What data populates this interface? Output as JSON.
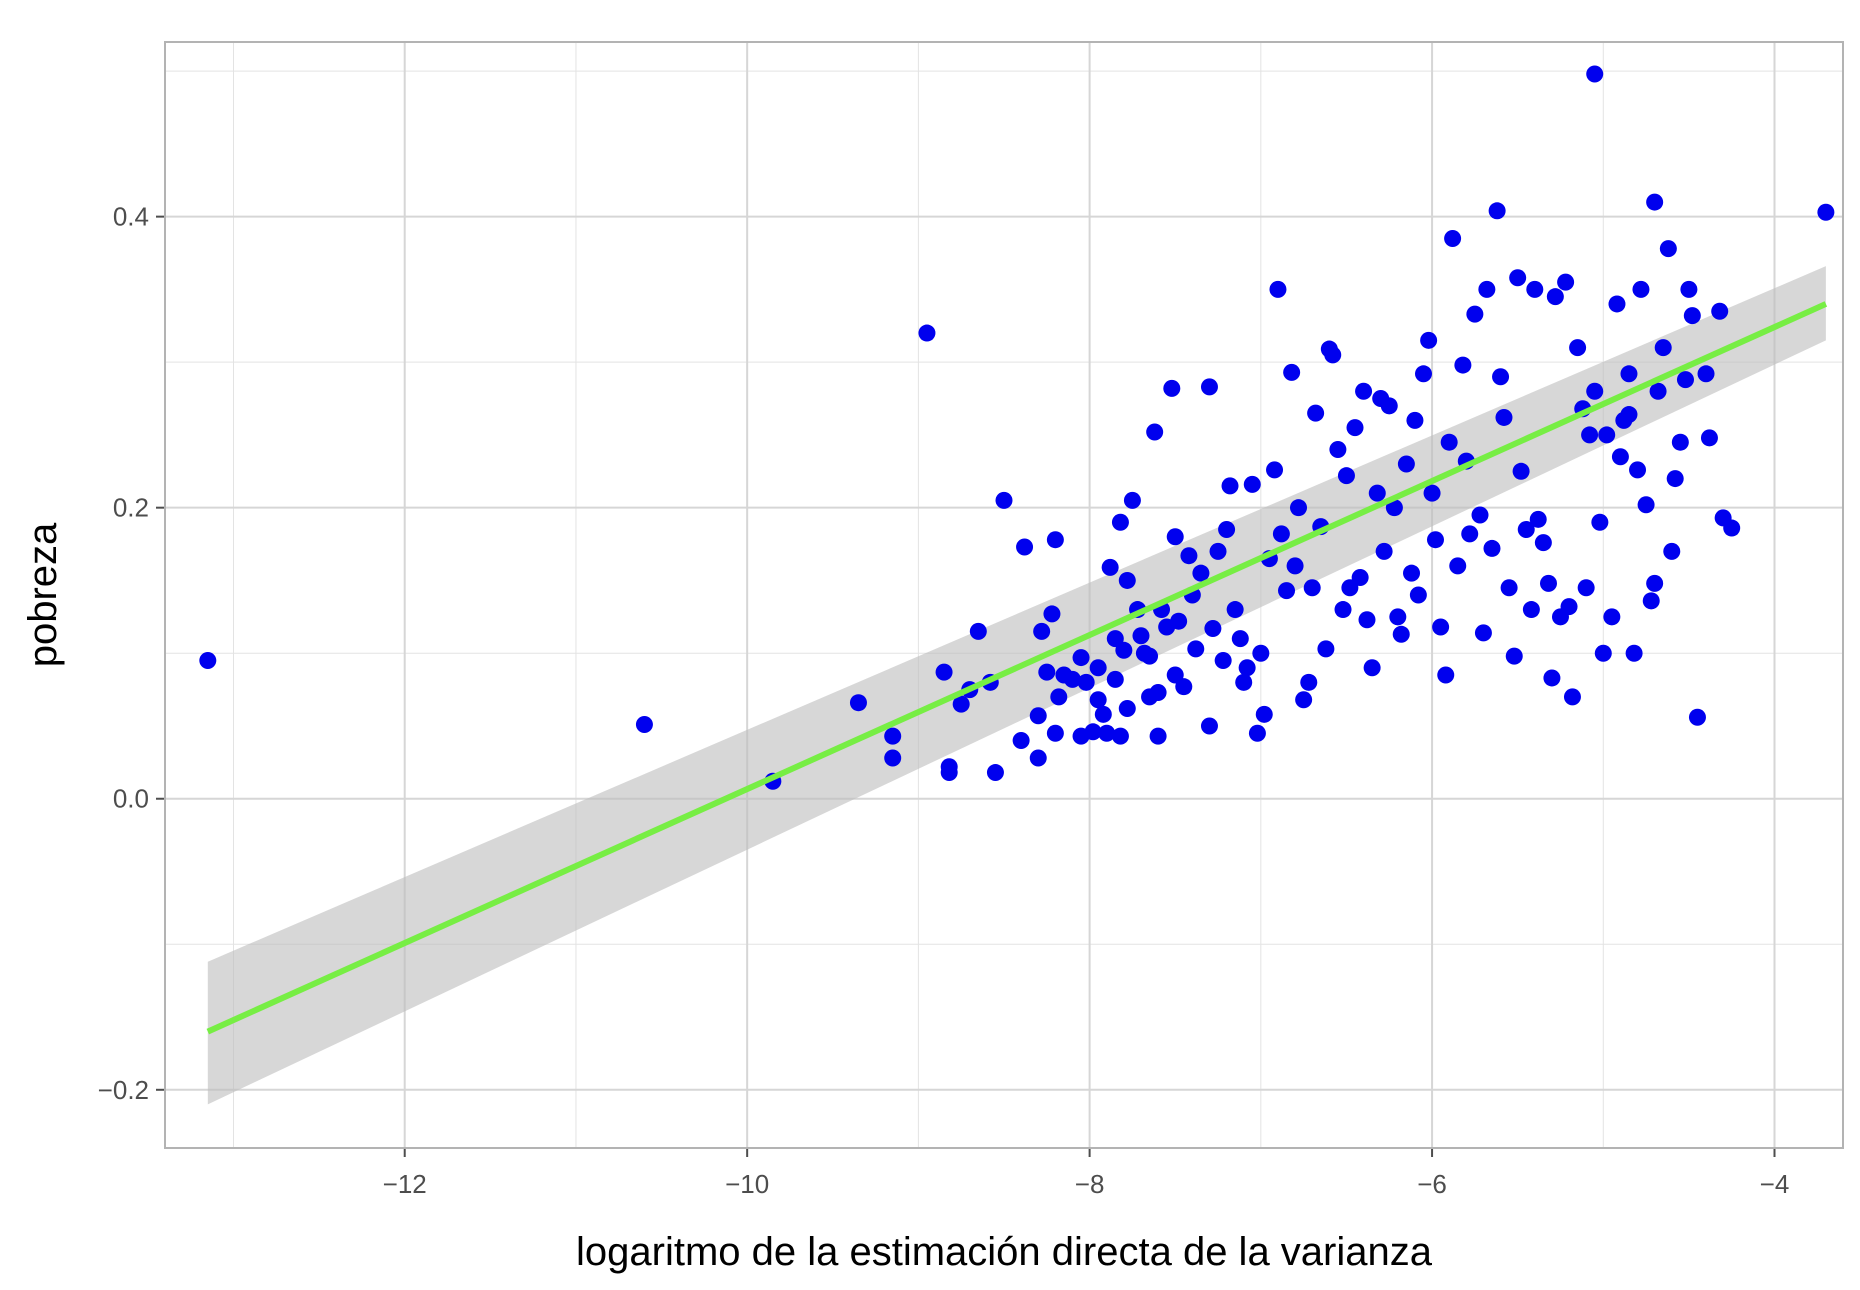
{
  "chart_data": {
    "type": "scatter",
    "xlabel": "logaritmo de la estimación directa de la varianza",
    "ylabel": "pobreza",
    "xlim": [
      -13.4,
      -3.6
    ],
    "ylim": [
      -0.24,
      0.52
    ],
    "x_ticks": [
      -12,
      -10,
      -8,
      -6,
      -4
    ],
    "x_tick_labels": [
      "−12",
      "−10",
      "−8",
      "−6",
      "−4"
    ],
    "y_ticks": [
      -0.2,
      0.0,
      0.2,
      0.4
    ],
    "y_tick_labels": [
      "−0.2",
      "0.0",
      "0.2",
      "0.4"
    ],
    "grid": true,
    "colors": {
      "points": "#0000ee",
      "fit_line": "#77ee44",
      "confidence_band": "#bdbdbd",
      "grid": "#e3e3e3",
      "panel_border": "#b3b3b3"
    },
    "fit": {
      "method": "lm",
      "x": [
        -13.15,
        -3.7
      ],
      "y": [
        -0.16,
        0.34
      ],
      "ci_lower": [
        -0.21,
        0.315
      ],
      "ci_upper": [
        -0.112,
        0.366
      ]
    },
    "points": [
      [
        -13.15,
        0.095
      ],
      [
        -10.6,
        0.051
      ],
      [
        -9.85,
        0.012
      ],
      [
        -9.35,
        0.066
      ],
      [
        -9.15,
        0.043
      ],
      [
        -9.15,
        0.028
      ],
      [
        -8.95,
        0.32
      ],
      [
        -8.85,
        0.087
      ],
      [
        -8.82,
        0.022
      ],
      [
        -8.82,
        0.018
      ],
      [
        -8.75,
        0.065
      ],
      [
        -8.7,
        0.075
      ],
      [
        -8.65,
        0.115
      ],
      [
        -8.58,
        0.08
      ],
      [
        -8.55,
        0.018
      ],
      [
        -8.5,
        0.205
      ],
      [
        -8.4,
        0.04
      ],
      [
        -8.38,
        0.173
      ],
      [
        -8.3,
        0.057
      ],
      [
        -8.3,
        0.028
      ],
      [
        -8.28,
        0.115
      ],
      [
        -8.25,
        0.087
      ],
      [
        -8.22,
        0.127
      ],
      [
        -8.2,
        0.045
      ],
      [
        -8.2,
        0.178
      ],
      [
        -8.18,
        0.07
      ],
      [
        -8.15,
        0.085
      ],
      [
        -8.1,
        0.082
      ],
      [
        -8.05,
        0.043
      ],
      [
        -8.05,
        0.097
      ],
      [
        -8.02,
        0.08
      ],
      [
        -7.98,
        0.046
      ],
      [
        -7.95,
        0.09
      ],
      [
        -7.95,
        0.068
      ],
      [
        -7.92,
        0.058
      ],
      [
        -7.9,
        0.045
      ],
      [
        -7.88,
        0.159
      ],
      [
        -7.85,
        0.11
      ],
      [
        -7.85,
        0.082
      ],
      [
        -7.82,
        0.043
      ],
      [
        -7.82,
        0.19
      ],
      [
        -7.8,
        0.102
      ],
      [
        -7.78,
        0.062
      ],
      [
        -7.78,
        0.15
      ],
      [
        -7.75,
        0.205
      ],
      [
        -7.72,
        0.13
      ],
      [
        -7.7,
        0.112
      ],
      [
        -7.68,
        0.1
      ],
      [
        -7.65,
        0.07
      ],
      [
        -7.65,
        0.098
      ],
      [
        -7.62,
        0.252
      ],
      [
        -7.6,
        0.073
      ],
      [
        -7.6,
        0.043
      ],
      [
        -7.58,
        0.13
      ],
      [
        -7.55,
        0.118
      ],
      [
        -7.52,
        0.282
      ],
      [
        -7.5,
        0.085
      ],
      [
        -7.5,
        0.18
      ],
      [
        -7.48,
        0.122
      ],
      [
        -7.45,
        0.077
      ],
      [
        -7.42,
        0.167
      ],
      [
        -7.4,
        0.14
      ],
      [
        -7.38,
        0.103
      ],
      [
        -7.35,
        0.155
      ],
      [
        -7.3,
        0.283
      ],
      [
        -7.3,
        0.05
      ],
      [
        -7.28,
        0.117
      ],
      [
        -7.25,
        0.17
      ],
      [
        -7.22,
        0.095
      ],
      [
        -7.2,
        0.185
      ],
      [
        -7.18,
        0.215
      ],
      [
        -7.15,
        0.13
      ],
      [
        -7.12,
        0.11
      ],
      [
        -7.1,
        0.08
      ],
      [
        -7.08,
        0.09
      ],
      [
        -7.05,
        0.216
      ],
      [
        -7.02,
        0.045
      ],
      [
        -7.0,
        0.1
      ],
      [
        -6.98,
        0.058
      ],
      [
        -6.95,
        0.165
      ],
      [
        -6.92,
        0.226
      ],
      [
        -6.9,
        0.35
      ],
      [
        -6.88,
        0.182
      ],
      [
        -6.85,
        0.143
      ],
      [
        -6.82,
        0.293
      ],
      [
        -6.8,
        0.16
      ],
      [
        -6.78,
        0.2
      ],
      [
        -6.75,
        0.068
      ],
      [
        -6.72,
        0.08
      ],
      [
        -6.7,
        0.145
      ],
      [
        -6.68,
        0.265
      ],
      [
        -6.65,
        0.187
      ],
      [
        -6.62,
        0.103
      ],
      [
        -6.6,
        0.309
      ],
      [
        -6.58,
        0.305
      ],
      [
        -6.55,
        0.24
      ],
      [
        -6.52,
        0.13
      ],
      [
        -6.5,
        0.222
      ],
      [
        -6.48,
        0.145
      ],
      [
        -6.45,
        0.255
      ],
      [
        -6.42,
        0.152
      ],
      [
        -6.4,
        0.28
      ],
      [
        -6.38,
        0.123
      ],
      [
        -6.35,
        0.09
      ],
      [
        -6.32,
        0.21
      ],
      [
        -6.3,
        0.275
      ],
      [
        -6.28,
        0.17
      ],
      [
        -6.25,
        0.27
      ],
      [
        -6.22,
        0.2
      ],
      [
        -6.2,
        0.125
      ],
      [
        -6.18,
        0.113
      ],
      [
        -6.15,
        0.23
      ],
      [
        -6.12,
        0.155
      ],
      [
        -6.1,
        0.26
      ],
      [
        -6.08,
        0.14
      ],
      [
        -6.05,
        0.292
      ],
      [
        -6.02,
        0.315
      ],
      [
        -6.0,
        0.21
      ],
      [
        -5.98,
        0.178
      ],
      [
        -5.95,
        0.118
      ],
      [
        -5.92,
        0.085
      ],
      [
        -5.9,
        0.245
      ],
      [
        -5.88,
        0.385
      ],
      [
        -5.85,
        0.16
      ],
      [
        -5.82,
        0.298
      ],
      [
        -5.8,
        0.232
      ],
      [
        -5.78,
        0.182
      ],
      [
        -5.75,
        0.333
      ],
      [
        -5.72,
        0.195
      ],
      [
        -5.7,
        0.114
      ],
      [
        -5.68,
        0.35
      ],
      [
        -5.65,
        0.172
      ],
      [
        -5.62,
        0.404
      ],
      [
        -5.6,
        0.29
      ],
      [
        -5.58,
        0.262
      ],
      [
        -5.55,
        0.145
      ],
      [
        -5.52,
        0.098
      ],
      [
        -5.5,
        0.358
      ],
      [
        -5.48,
        0.225
      ],
      [
        -5.45,
        0.185
      ],
      [
        -5.42,
        0.13
      ],
      [
        -5.4,
        0.35
      ],
      [
        -5.38,
        0.192
      ],
      [
        -5.35,
        0.176
      ],
      [
        -5.32,
        0.148
      ],
      [
        -5.3,
        0.083
      ],
      [
        -5.28,
        0.345
      ],
      [
        -5.25,
        0.125
      ],
      [
        -5.22,
        0.355
      ],
      [
        -5.2,
        0.132
      ],
      [
        -5.18,
        0.07
      ],
      [
        -5.15,
        0.31
      ],
      [
        -5.12,
        0.268
      ],
      [
        -5.1,
        0.145
      ],
      [
        -5.08,
        0.25
      ],
      [
        -5.05,
        0.28
      ],
      [
        -5.02,
        0.19
      ],
      [
        -5.0,
        0.1
      ],
      [
        -4.98,
        0.25
      ],
      [
        -4.95,
        0.125
      ],
      [
        -4.92,
        0.34
      ],
      [
        -4.9,
        0.235
      ],
      [
        -4.88,
        0.26
      ],
      [
        -4.85,
        0.292
      ],
      [
        -4.82,
        0.1
      ],
      [
        -4.8,
        0.226
      ],
      [
        -4.78,
        0.35
      ],
      [
        -4.75,
        0.202
      ],
      [
        -4.72,
        0.136
      ],
      [
        -4.7,
        0.148
      ],
      [
        -4.68,
        0.28
      ],
      [
        -4.65,
        0.31
      ],
      [
        -4.62,
        0.378
      ],
      [
        -4.6,
        0.17
      ],
      [
        -4.58,
        0.22
      ],
      [
        -4.55,
        0.245
      ],
      [
        -4.52,
        0.288
      ],
      [
        -4.5,
        0.35
      ],
      [
        -4.48,
        0.332
      ],
      [
        -4.45,
        0.056
      ],
      [
        -4.4,
        0.292
      ],
      [
        -4.38,
        0.248
      ],
      [
        -4.32,
        0.335
      ],
      [
        -4.3,
        0.193
      ],
      [
        -4.25,
        0.186
      ],
      [
        -5.05,
        0.498
      ],
      [
        -4.7,
        0.41
      ],
      [
        -4.85,
        0.264
      ],
      [
        -3.7,
        0.403
      ]
    ]
  }
}
